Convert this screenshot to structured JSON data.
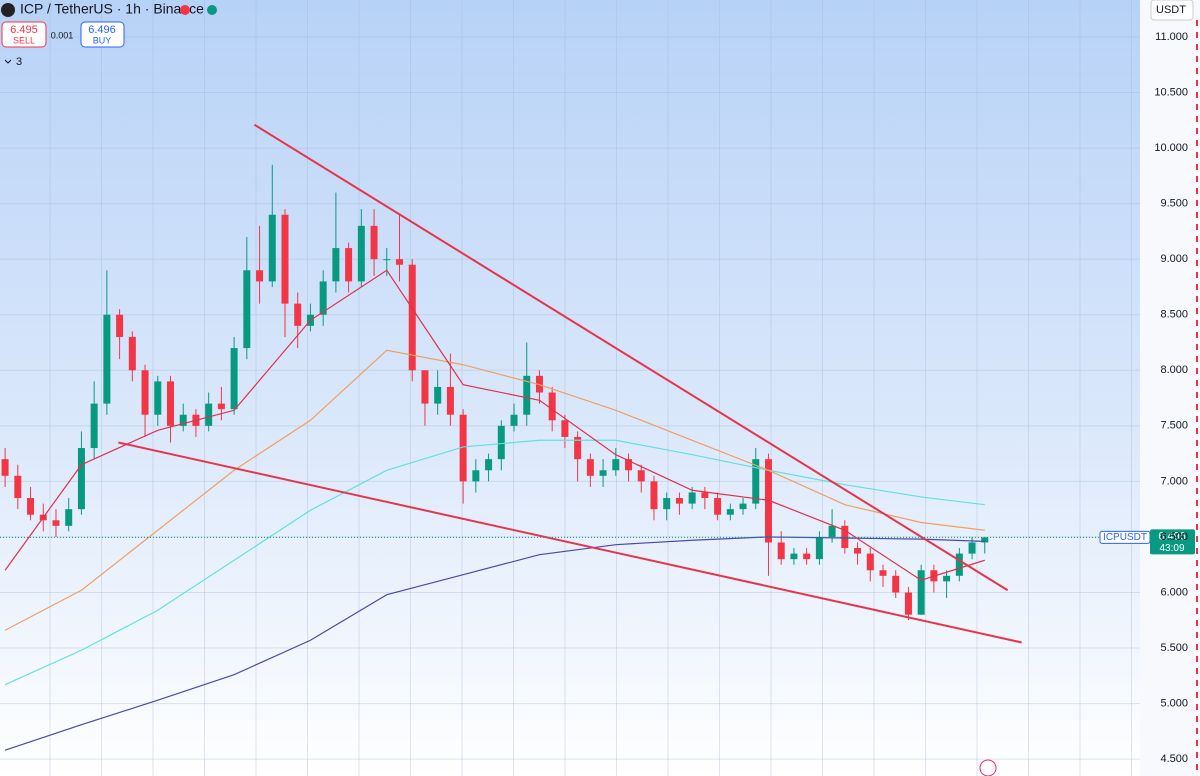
{
  "header": {
    "symbol_title": "ICP / TetherUS · 1h · Binance",
    "sell_price": "6.495",
    "sell_label": "SELL",
    "spread": "0.001",
    "buy_price": "6.496",
    "buy_label": "BUY",
    "indicators_count": "3",
    "currency": "USDT"
  },
  "chart_data": {
    "type": "candlestick",
    "xlim": [
      -0.4,
      89.2
    ],
    "ylim": [
      4.348,
      11.333
    ],
    "yticks": [
      {
        "value": 11,
        "label": "11.000"
      },
      {
        "value": 10.5,
        "label": "10.500"
      },
      {
        "value": 10,
        "label": "10.000"
      },
      {
        "value": 9.5,
        "label": "9.500"
      },
      {
        "value": 9,
        "label": "9.000"
      },
      {
        "value": 8.5,
        "label": "8.500"
      },
      {
        "value": 8,
        "label": "8.000"
      },
      {
        "value": 7.5,
        "label": "7.500"
      },
      {
        "value": 7,
        "label": "7.000"
      },
      {
        "value": 6.5,
        "label": "6.500"
      },
      {
        "value": 6,
        "label": "6.000"
      },
      {
        "value": 5.5,
        "label": "5.500"
      },
      {
        "value": 5,
        "label": "5.000"
      },
      {
        "value": 4.5,
        "label": "4.500"
      }
    ],
    "grid": true,
    "up_color": "#089981",
    "down_color": "#f23645",
    "open": [
      7.2,
      7.05,
      6.85,
      6.7,
      6.65,
      6.6,
      6.75,
      7.3,
      7.7,
      8.5,
      8.3,
      8.0,
      7.6,
      7.9,
      7.5,
      7.6,
      7.5,
      7.7,
      7.65,
      8.2,
      8.9,
      8.8,
      9.4,
      8.6,
      8.4,
      8.5,
      8.8,
      9.1,
      8.8,
      9.3,
      9.0,
      9.0,
      8.95,
      8.0,
      7.7,
      7.85,
      7.6,
      7.0,
      7.1,
      7.2,
      7.5,
      7.6,
      7.95,
      7.8,
      7.55,
      7.4,
      7.2,
      7.05,
      7.1,
      7.2,
      7.1,
      7.0,
      6.75,
      6.85,
      6.8,
      6.9,
      6.85,
      6.7,
      6.75,
      6.8,
      7.2,
      6.45,
      6.3,
      6.35,
      6.3,
      6.5,
      6.6,
      6.4,
      6.35,
      6.2,
      6.15,
      6.0,
      5.8,
      6.2,
      6.1,
      6.15,
      6.35,
      6.45
    ],
    "high": [
      7.3,
      7.15,
      6.95,
      6.8,
      6.75,
      6.85,
      7.45,
      7.9,
      8.9,
      8.55,
      8.35,
      8.05,
      7.95,
      7.95,
      7.7,
      7.65,
      7.8,
      7.85,
      8.3,
      9.2,
      9.3,
      9.85,
      9.45,
      8.7,
      8.6,
      8.9,
      9.6,
      9.15,
      9.45,
      9.45,
      9.1,
      9.4,
      9.0,
      7.95,
      8.0,
      8.15,
      7.65,
      7.2,
      7.25,
      7.55,
      7.7,
      8.25,
      8.0,
      7.85,
      7.6,
      7.45,
      7.25,
      7.2,
      7.3,
      7.25,
      7.15,
      7.05,
      6.9,
      6.9,
      6.95,
      6.95,
      6.9,
      6.8,
      6.85,
      7.3,
      7.25,
      6.55,
      6.4,
      6.4,
      6.55,
      6.75,
      6.65,
      6.45,
      6.4,
      6.25,
      6.2,
      6.05,
      6.25,
      6.25,
      6.2,
      6.4,
      6.5,
      6.5
    ],
    "low": [
      6.95,
      6.75,
      6.65,
      6.55,
      6.5,
      6.55,
      6.7,
      7.2,
      7.6,
      8.1,
      7.9,
      7.4,
      7.5,
      7.35,
      7.45,
      7.4,
      7.45,
      7.55,
      7.6,
      8.1,
      8.6,
      8.75,
      8.3,
      8.2,
      8.35,
      8.4,
      8.7,
      8.7,
      8.75,
      8.85,
      8.85,
      8.8,
      7.9,
      7.5,
      7.6,
      7.5,
      6.8,
      6.9,
      7.0,
      7.1,
      7.45,
      7.5,
      7.7,
      7.45,
      7.3,
      7.0,
      6.95,
      6.95,
      7.05,
      7.0,
      6.9,
      6.65,
      6.65,
      6.7,
      6.75,
      6.75,
      6.65,
      6.65,
      6.7,
      6.75,
      6.15,
      6.25,
      6.25,
      6.25,
      6.25,
      6.45,
      6.35,
      6.25,
      6.1,
      6.05,
      5.95,
      5.75,
      5.8,
      6.0,
      5.95,
      6.1,
      6.3,
      6.35
    ],
    "close": [
      7.05,
      6.85,
      6.7,
      6.65,
      6.6,
      6.75,
      7.3,
      7.7,
      8.5,
      8.3,
      8.0,
      7.6,
      7.9,
      7.5,
      7.6,
      7.5,
      7.7,
      7.65,
      8.2,
      8.9,
      8.8,
      9.4,
      8.6,
      8.4,
      8.5,
      8.8,
      9.1,
      8.8,
      9.3,
      9.0,
      9.0,
      8.95,
      8.0,
      7.7,
      7.85,
      7.6,
      7.0,
      7.1,
      7.2,
      7.5,
      7.6,
      7.95,
      7.8,
      7.55,
      7.4,
      7.2,
      7.05,
      7.1,
      7.2,
      7.1,
      7.0,
      6.75,
      6.85,
      6.8,
      6.9,
      6.85,
      6.7,
      6.75,
      6.8,
      7.2,
      6.45,
      6.3,
      6.35,
      6.3,
      6.5,
      6.6,
      6.4,
      6.35,
      6.2,
      6.15,
      6.0,
      5.8,
      6.2,
      6.1,
      6.15,
      6.35,
      6.45,
      6.496
    ],
    "moving_averages": {
      "x": [
        0,
        6,
        12,
        18,
        24,
        30,
        36,
        42,
        48,
        54,
        60,
        66,
        72,
        77
      ],
      "series": [
        {
          "color": "#4a4aa8",
          "values": [
            4.58,
            4.81,
            5.03,
            5.26,
            5.57,
            5.98,
            6.16,
            6.34,
            6.43,
            6.47,
            6.5,
            6.49,
            6.48,
            6.46
          ]
        },
        {
          "color": "#62e0e0",
          "values": [
            5.17,
            5.48,
            5.84,
            6.29,
            6.74,
            7.1,
            7.31,
            7.37,
            7.37,
            7.24,
            7.1,
            6.97,
            6.86,
            6.79
          ]
        },
        {
          "color": "#f0a060",
          "values": [
            5.66,
            6.02,
            6.56,
            7.1,
            7.55,
            8.18,
            8.05,
            7.87,
            7.64,
            7.37,
            7.1,
            6.79,
            6.63,
            6.56
          ]
        },
        {
          "color": "#e0304a",
          "values": [
            6.2,
            7.15,
            7.46,
            7.64,
            8.45,
            8.9,
            7.87,
            7.73,
            7.24,
            6.92,
            6.83,
            6.56,
            6.11,
            6.29
          ]
        }
      ]
    },
    "trendlines": [
      {
        "color": "#e8344a",
        "x": [
          19.6,
          78.8
        ],
        "y": [
          10.21,
          6.02
        ]
      },
      {
        "color": "#e8344a",
        "x": [
          8.9,
          79.9
        ],
        "y": [
          7.35,
          5.55
        ]
      }
    ],
    "last_price": {
      "symbol": "ICPUSDT",
      "value": 6.496,
      "countdown": "43:09"
    }
  }
}
